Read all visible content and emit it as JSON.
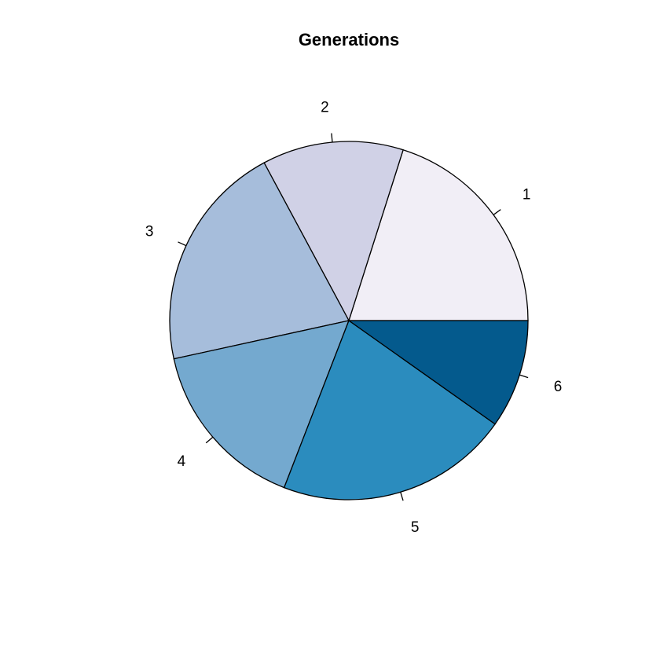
{
  "chart_data": {
    "type": "pie",
    "title": "Generations",
    "labels": [
      "1",
      "2",
      "3",
      "4",
      "5",
      "6"
    ],
    "values": [
      20.5,
      13.0,
      21.0,
      16.0,
      21.5,
      10.0
    ],
    "colors": [
      "#F1EEF6",
      "#D0D1E6",
      "#A6BDDB",
      "#74A9CF",
      "#2B8CBE",
      "#045A8D"
    ],
    "start_angle_deg": 0,
    "direction": "counterclockwise",
    "legend": "none"
  }
}
